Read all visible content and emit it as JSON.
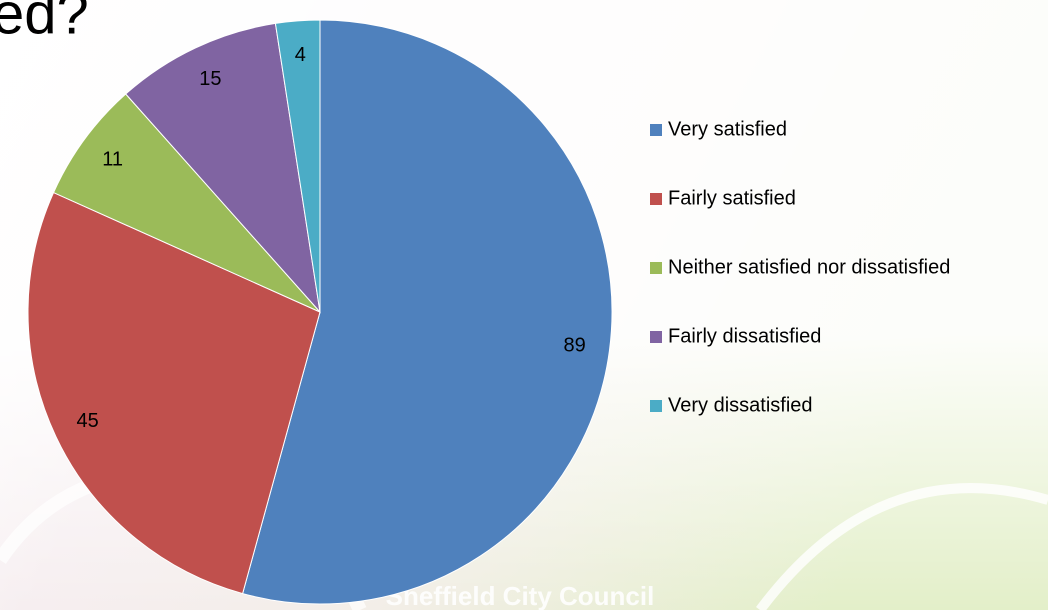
{
  "chart_data": {
    "type": "pie",
    "title": "ed?",
    "footer": "Sheffield City Council",
    "categories": [
      "Very satisfied",
      "Fairly satisfied",
      "Neither satisfied nor dissatisfied",
      "Fairly dissatisfied",
      "Very dissatisfied"
    ],
    "values": [
      89,
      45,
      11,
      15,
      4
    ],
    "colors": [
      "#4f81bd",
      "#c0504d",
      "#9bbb59",
      "#8064a2",
      "#4bacc6"
    ],
    "legend": "right"
  }
}
